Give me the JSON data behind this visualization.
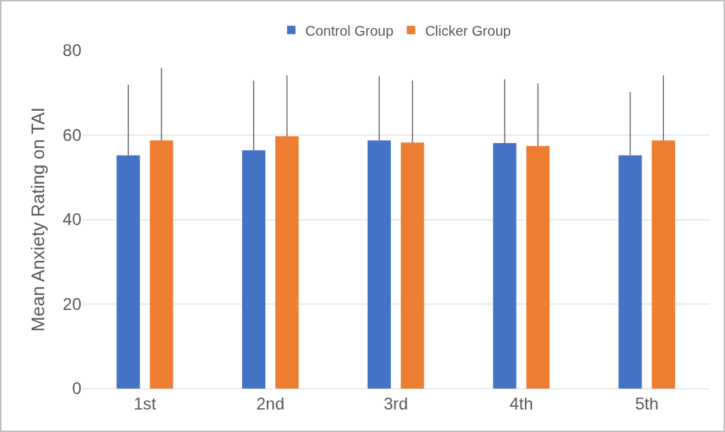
{
  "chart_data": {
    "type": "bar",
    "ylabel": "Mean Anxiety Rating on TAI",
    "categories": [
      "1st",
      "2nd",
      "3rd",
      "4th",
      "5th"
    ],
    "series": [
      {
        "name": "Control Group",
        "color": "#4472c4",
        "values": [
          55.2,
          56.4,
          58.7,
          58.1,
          55.2
        ],
        "errors": [
          [
            55.2,
            71.9
          ],
          [
            56.4,
            72.9
          ],
          [
            58.7,
            73.9
          ],
          [
            58.1,
            73.2
          ],
          [
            55.2,
            70.2
          ]
        ]
      },
      {
        "name": "Clicker Group",
        "color": "#ed7d31",
        "values": [
          58.7,
          59.7,
          58.2,
          57.4,
          58.7
        ],
        "errors": [
          [
            58.7,
            75.9
          ],
          [
            59.7,
            74.1
          ],
          [
            58.2,
            72.9
          ],
          [
            57.4,
            72.2
          ],
          [
            58.7,
            74.1
          ]
        ]
      }
    ],
    "ylim": [
      0,
      80
    ],
    "yticks": [
      0,
      20,
      40,
      60,
      80
    ],
    "grid": "y",
    "legend": "top"
  }
}
